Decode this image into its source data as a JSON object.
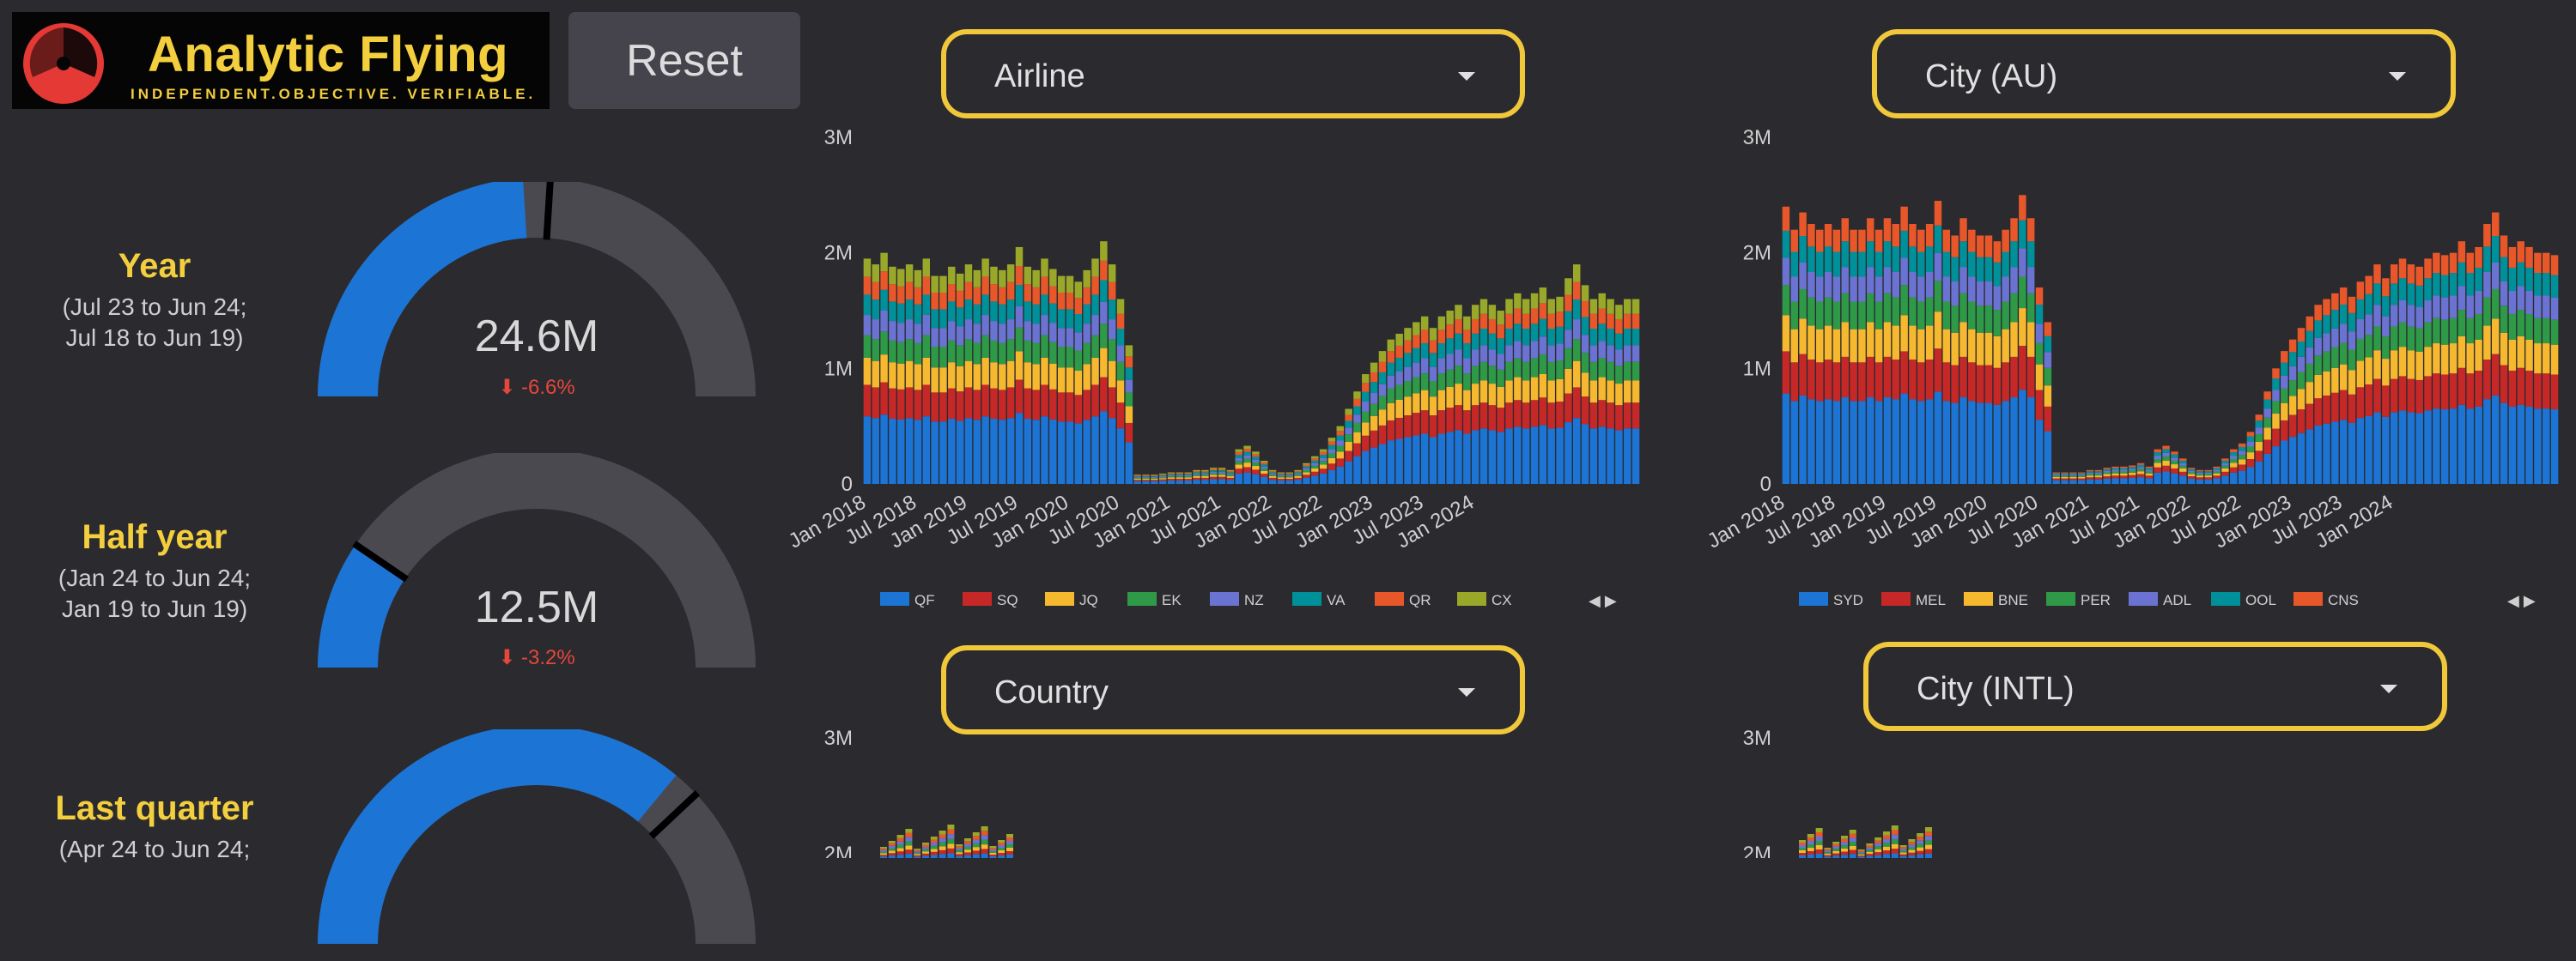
{
  "app": {
    "logo_name": "Analytic Flying",
    "logo_tagline": "INDEPENDENT.OBJECTIVE. VERIFIABLE.",
    "reset_label": "Reset",
    "colors": {
      "accent": "#f3cf3e",
      "gauge_fill": "#1c74d4",
      "gauge_track": "#4a4950",
      "negative": "#e5473c",
      "logo_mark": "#e53935"
    }
  },
  "kpis": [
    {
      "label": "Year",
      "sub1": "(Jul 23 to Jun 24;",
      "sub2": "Jul 18 to Jun 19)",
      "value": "24.6M",
      "change": "-6.6%",
      "fraction": 0.48,
      "target_fraction": 0.52
    },
    {
      "label": "Half year",
      "sub1": "(Jan 24 to Jun 24;",
      "sub2": "Jan 19 to Jun 19)",
      "value": "12.5M",
      "change": "-3.2%",
      "fraction": 0.19,
      "target_fraction": 0.19
    },
    {
      "label": "Last quarter",
      "sub1": "(Apr 24 to Jun 24;",
      "sub2": "",
      "value": "",
      "change": "",
      "fraction": 0.72,
      "target_fraction": 0.76
    }
  ],
  "dropdowns": {
    "airline": "Airline",
    "city_au": "City (AU)",
    "country": "Country",
    "city_intl": "City (INTL)"
  },
  "legend_nav": "◀ ▶",
  "chart_data": [
    {
      "type": "bar",
      "title": "Airline",
      "stacked": true,
      "x_range": [
        "Jan 2018",
        "Jun 2024"
      ],
      "ylim": [
        0,
        3000000
      ],
      "y_ticks": [
        "0",
        "1M",
        "2M",
        "3M"
      ],
      "x_ticks": [
        "Jan 2018",
        "Jul 2018",
        "Jan 2019",
        "Jul 2019",
        "Jan 2020",
        "Jul 2020",
        "Jan 2021",
        "Jul 2021",
        "Jan 2022",
        "Jul 2022",
        "Jan 2023",
        "Jul 2023",
        "Jan 2024"
      ],
      "legend_position": "bottom",
      "series": [
        {
          "name": "QF",
          "color": "#1c74d4"
        },
        {
          "name": "SQ",
          "color": "#c62828"
        },
        {
          "name": "JQ",
          "color": "#f5b82e"
        },
        {
          "name": "EK",
          "color": "#2e9a48"
        },
        {
          "name": "NZ",
          "color": "#6a73d1"
        },
        {
          "name": "VA",
          "color": "#00909a"
        },
        {
          "name": "QR",
          "color": "#e8572a"
        },
        {
          "name": "CX",
          "color": "#9aa82a"
        }
      ],
      "values_total_monthly": [
        1.95,
        1.9,
        2.0,
        1.88,
        1.86,
        1.9,
        1.85,
        1.95,
        1.8,
        1.8,
        1.88,
        1.82,
        1.9,
        1.85,
        1.95,
        1.88,
        1.85,
        1.9,
        2.05,
        1.88,
        1.85,
        1.95,
        1.86,
        1.8,
        1.8,
        1.75,
        1.85,
        1.95,
        2.1,
        1.9,
        1.6,
        1.2,
        0.08,
        0.08,
        0.08,
        0.09,
        0.1,
        0.1,
        0.1,
        0.12,
        0.12,
        0.14,
        0.14,
        0.12,
        0.3,
        0.33,
        0.28,
        0.2,
        0.12,
        0.1,
        0.1,
        0.12,
        0.18,
        0.24,
        0.3,
        0.4,
        0.5,
        0.65,
        0.8,
        0.95,
        1.05,
        1.15,
        1.25,
        1.3,
        1.35,
        1.4,
        1.45,
        1.35,
        1.45,
        1.5,
        1.55,
        1.45,
        1.55,
        1.6,
        1.55,
        1.5,
        1.6,
        1.65,
        1.6,
        1.65,
        1.7,
        1.6,
        1.62,
        1.78,
        1.9,
        1.72,
        1.6,
        1.65,
        1.6,
        1.55,
        1.6,
        1.6
      ],
      "values_unit": "millions"
    },
    {
      "type": "bar",
      "title": "City (AU)",
      "stacked": true,
      "x_range": [
        "Jan 2018",
        "Jun 2024"
      ],
      "ylim": [
        0,
        3000000
      ],
      "y_ticks": [
        "0",
        "1M",
        "2M",
        "3M"
      ],
      "x_ticks": [
        "Jan 2018",
        "Jul 2018",
        "Jan 2019",
        "Jul 2019",
        "Jan 2020",
        "Jul 2020",
        "Jan 2021",
        "Jul 2021",
        "Jan 2022",
        "Jul 2022",
        "Jan 2023",
        "Jul 2023",
        "Jan 2024"
      ],
      "legend_position": "bottom",
      "series": [
        {
          "name": "SYD",
          "color": "#1c74d4"
        },
        {
          "name": "MEL",
          "color": "#c62828"
        },
        {
          "name": "BNE",
          "color": "#f5b82e"
        },
        {
          "name": "PER",
          "color": "#2e9a48"
        },
        {
          "name": "ADL",
          "color": "#6a73d1"
        },
        {
          "name": "OOL",
          "color": "#00909a"
        },
        {
          "name": "CNS",
          "color": "#e8572a"
        }
      ],
      "values_total_monthly": [
        2.4,
        2.2,
        2.35,
        2.25,
        2.2,
        2.25,
        2.2,
        2.3,
        2.2,
        2.2,
        2.3,
        2.2,
        2.3,
        2.25,
        2.4,
        2.25,
        2.2,
        2.25,
        2.45,
        2.2,
        2.15,
        2.3,
        2.2,
        2.15,
        2.15,
        2.1,
        2.2,
        2.3,
        2.5,
        2.3,
        1.7,
        1.4,
        0.1,
        0.1,
        0.1,
        0.1,
        0.12,
        0.12,
        0.14,
        0.15,
        0.15,
        0.16,
        0.18,
        0.15,
        0.3,
        0.33,
        0.28,
        0.22,
        0.14,
        0.12,
        0.12,
        0.15,
        0.22,
        0.3,
        0.35,
        0.45,
        0.6,
        0.8,
        1.0,
        1.15,
        1.25,
        1.35,
        1.45,
        1.55,
        1.6,
        1.65,
        1.7,
        1.62,
        1.75,
        1.8,
        1.9,
        1.78,
        1.9,
        1.95,
        1.9,
        1.88,
        1.95,
        2.0,
        1.98,
        2.0,
        2.1,
        2.0,
        2.05,
        2.25,
        2.35,
        2.15,
        2.05,
        2.1,
        2.05,
        2.0,
        2.0,
        1.98
      ],
      "values_unit": "millions"
    }
  ],
  "lower_charts": {
    "country_y_ticks": [
      "3M",
      "2M"
    ],
    "intl_y_ticks": [
      "3M",
      "2M"
    ]
  }
}
